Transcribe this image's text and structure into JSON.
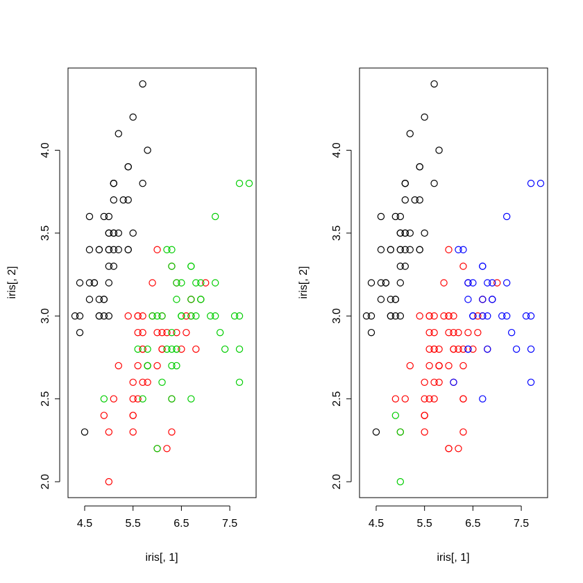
{
  "chart_data": [
    {
      "type": "scatter",
      "title": "",
      "xlabel": "iris[, 1]",
      "ylabel": "iris[, 2]",
      "xlim": [
        4.3,
        7.9
      ],
      "ylim": [
        2.0,
        4.4
      ],
      "xticks": [
        4.5,
        5.5,
        6.5,
        7.5
      ],
      "yticks": [
        2.0,
        2.5,
        3.0,
        3.5,
        4.0
      ],
      "xtick_labels": [
        "4.5",
        "5.5",
        "6.5",
        "7.5"
      ],
      "ytick_labels": [
        "2.0",
        "2.5",
        "3.0",
        "3.5",
        "4.0"
      ],
      "grid": false,
      "legend": "none",
      "series": [
        {
          "color": "#000000",
          "x": [
            5.1,
            4.9,
            4.7,
            4.6,
            5.0,
            5.4,
            4.6,
            5.0,
            4.4,
            4.9,
            5.4,
            4.8,
            4.8,
            4.3,
            5.8,
            5.7,
            5.4,
            5.1,
            5.7,
            5.1,
            5.4,
            5.1,
            4.6,
            5.1,
            4.8,
            5.0,
            5.0,
            5.2,
            5.2,
            4.7,
            4.8,
            5.4,
            5.2,
            5.5,
            4.9,
            5.0,
            5.5,
            4.9,
            4.4,
            5.1,
            5.0,
            4.5,
            4.4,
            5.0,
            5.1,
            4.8,
            5.1,
            4.6,
            5.3,
            5.0
          ],
          "y": [
            3.5,
            3.0,
            3.2,
            3.1,
            3.6,
            3.9,
            3.4,
            3.4,
            2.9,
            3.1,
            3.7,
            3.4,
            3.0,
            3.0,
            4.0,
            4.4,
            3.9,
            3.5,
            3.8,
            3.8,
            3.4,
            3.7,
            3.6,
            3.3,
            3.4,
            3.0,
            3.4,
            3.5,
            3.4,
            3.2,
            3.1,
            3.4,
            4.1,
            4.2,
            3.1,
            3.2,
            3.5,
            3.6,
            3.0,
            3.4,
            3.5,
            2.3,
            3.2,
            3.5,
            3.8,
            3.0,
            3.8,
            3.2,
            3.7,
            3.3
          ]
        },
        {
          "color": "#ff0000",
          "x": [
            7.0,
            6.4,
            6.9,
            5.5,
            6.5,
            5.7,
            6.3,
            4.9,
            6.6,
            5.2,
            5.0,
            5.9,
            6.0,
            6.1,
            5.6,
            6.7,
            5.6,
            5.8,
            6.2,
            5.6,
            5.9,
            6.1,
            6.3,
            6.1,
            6.4,
            6.6,
            6.8,
            6.7,
            6.0,
            5.7,
            5.5,
            5.5,
            5.8,
            6.0,
            5.4,
            6.0,
            6.7,
            6.3,
            5.6,
            5.5,
            5.5,
            6.1,
            5.8,
            5.0,
            5.6,
            5.7,
            5.7,
            6.2,
            5.1,
            5.7
          ],
          "y": [
            3.2,
            3.2,
            3.1,
            2.3,
            2.8,
            2.8,
            3.3,
            2.4,
            2.9,
            2.7,
            2.0,
            3.0,
            2.2,
            2.9,
            2.9,
            3.1,
            3.0,
            2.7,
            2.2,
            2.5,
            3.2,
            2.8,
            2.5,
            2.8,
            2.9,
            3.0,
            2.8,
            3.0,
            2.9,
            2.6,
            2.4,
            2.4,
            2.7,
            2.7,
            3.0,
            3.4,
            3.1,
            2.3,
            3.0,
            2.5,
            2.6,
            3.0,
            2.6,
            2.3,
            2.7,
            3.0,
            2.9,
            2.9,
            2.5,
            2.8
          ]
        },
        {
          "color": "#00cd00",
          "x": [
            6.3,
            5.8,
            7.1,
            6.3,
            6.5,
            7.6,
            4.9,
            7.3,
            6.7,
            7.2,
            6.5,
            6.4,
            6.8,
            5.7,
            5.8,
            6.4,
            6.5,
            7.7,
            7.7,
            6.0,
            6.9,
            5.6,
            7.7,
            6.3,
            6.7,
            7.2,
            6.2,
            6.1,
            6.4,
            7.2,
            7.4,
            7.9,
            6.4,
            6.3,
            6.1,
            7.7,
            6.3,
            6.4,
            6.0,
            6.9,
            6.7,
            6.9,
            5.8,
            6.8,
            6.7,
            6.7,
            6.3,
            6.5,
            6.2,
            5.9
          ],
          "y": [
            3.3,
            2.7,
            3.0,
            2.9,
            3.0,
            3.0,
            2.5,
            2.9,
            2.5,
            3.6,
            3.2,
            2.7,
            3.0,
            2.5,
            2.8,
            3.2,
            3.0,
            3.8,
            2.6,
            2.2,
            3.2,
            2.8,
            2.8,
            2.7,
            3.3,
            3.2,
            2.8,
            3.0,
            2.8,
            3.0,
            2.8,
            3.8,
            2.8,
            2.8,
            2.6,
            3.0,
            3.4,
            3.1,
            3.0,
            3.1,
            3.1,
            3.1,
            2.7,
            3.2,
            3.3,
            3.0,
            2.5,
            3.0,
            3.4,
            3.0
          ]
        }
      ]
    },
    {
      "type": "scatter",
      "title": "",
      "xlabel": "iris[, 1]",
      "ylabel": "iris[, 2]",
      "xlim": [
        4.3,
        7.9
      ],
      "ylim": [
        2.0,
        4.4
      ],
      "xticks": [
        4.5,
        5.5,
        6.5,
        7.5
      ],
      "yticks": [
        2.0,
        2.5,
        3.0,
        3.5,
        4.0
      ],
      "xtick_labels": [
        "4.5",
        "5.5",
        "6.5",
        "7.5"
      ],
      "ytick_labels": [
        "2.0",
        "2.5",
        "3.0",
        "3.5",
        "4.0"
      ],
      "grid": false,
      "legend": "none",
      "series": [
        {
          "color": "#000000",
          "x": [
            5.1,
            4.9,
            4.7,
            4.6,
            5.0,
            5.4,
            4.6,
            5.0,
            4.4,
            4.9,
            5.4,
            4.8,
            4.8,
            4.3,
            5.8,
            5.7,
            5.4,
            5.1,
            5.7,
            5.1,
            5.4,
            5.1,
            4.6,
            5.1,
            4.8,
            5.0,
            5.0,
            5.2,
            5.2,
            4.7,
            4.8,
            5.4,
            5.2,
            5.5,
            4.9,
            5.0,
            5.5,
            4.9,
            4.4,
            5.1,
            5.0,
            4.5,
            4.4,
            5.0,
            5.1,
            4.8,
            5.1,
            4.6,
            5.3,
            5.0
          ],
          "y": [
            3.5,
            3.0,
            3.2,
            3.1,
            3.6,
            3.9,
            3.4,
            3.4,
            2.9,
            3.1,
            3.7,
            3.4,
            3.0,
            3.0,
            4.0,
            4.4,
            3.9,
            3.5,
            3.8,
            3.8,
            3.4,
            3.7,
            3.6,
            3.3,
            3.4,
            3.0,
            3.4,
            3.5,
            3.4,
            3.2,
            3.1,
            3.4,
            4.1,
            4.2,
            3.1,
            3.2,
            3.5,
            3.6,
            3.0,
            3.4,
            3.5,
            2.3,
            3.2,
            3.5,
            3.8,
            3.0,
            3.8,
            3.2,
            3.7,
            3.3
          ]
        },
        {
          "color": "#ff0000",
          "x": [
            7.0,
            6.4,
            6.9,
            5.5,
            6.5,
            5.7,
            6.3,
            6.6,
            5.9,
            6.0,
            6.1,
            5.6,
            6.7,
            5.6,
            5.8,
            6.2,
            5.6,
            5.9,
            6.1,
            6.3,
            6.1,
            6.4,
            6.6,
            6.8,
            6.7,
            6.0,
            5.7,
            5.5,
            5.5,
            5.8,
            6.0,
            5.4,
            6.0,
            6.7,
            6.3,
            5.6,
            5.5,
            5.5,
            6.1,
            5.8,
            5.6,
            5.7,
            5.7,
            6.2,
            5.1,
            5.7,
            5.8,
            6.0,
            6.3,
            6.3,
            6.2,
            6.1,
            6.0,
            5.6,
            6.3,
            6.0,
            5.8,
            5.8,
            5.7,
            5.0,
            4.9,
            5.5,
            5.2
          ],
          "y": [
            3.2,
            3.2,
            3.1,
            2.3,
            2.8,
            2.8,
            3.3,
            2.9,
            3.0,
            2.2,
            2.9,
            2.9,
            3.1,
            3.0,
            2.7,
            2.2,
            2.5,
            3.2,
            2.8,
            2.5,
            2.8,
            2.9,
            3.0,
            2.8,
            3.0,
            2.9,
            2.6,
            2.4,
            2.4,
            2.7,
            2.7,
            3.0,
            3.4,
            3.1,
            2.3,
            3.0,
            2.5,
            2.6,
            3.0,
            2.6,
            2.7,
            3.0,
            2.9,
            2.9,
            2.5,
            2.8,
            2.7,
            2.2,
            2.5,
            2.8,
            2.8,
            2.6,
            3.0,
            2.8,
            2.7,
            3.0,
            2.7,
            2.8,
            2.5,
            2.3,
            2.5,
            2.4,
            2.7
          ]
        },
        {
          "color": "#00cd00",
          "x": [
            5.0,
            4.9,
            5.0
          ],
          "y": [
            2.0,
            2.4,
            2.3
          ]
        },
        {
          "color": "#0000ff",
          "x": [
            7.1,
            6.5,
            7.6,
            7.3,
            6.7,
            7.2,
            6.4,
            6.8,
            6.4,
            6.5,
            7.7,
            7.7,
            6.9,
            7.7,
            6.7,
            7.2,
            6.4,
            7.2,
            7.4,
            7.9,
            6.4,
            6.1,
            7.7,
            6.3,
            6.4,
            6.9,
            6.7,
            6.9,
            6.8,
            6.7,
            6.7,
            6.5,
            6.2,
            6.8,
            6.5
          ],
          "y": [
            3.0,
            3.0,
            3.0,
            2.9,
            2.5,
            3.6,
            3.2,
            3.0,
            3.2,
            3.0,
            3.8,
            2.6,
            3.2,
            2.8,
            3.3,
            3.2,
            2.8,
            3.0,
            2.8,
            3.8,
            2.8,
            2.6,
            3.0,
            3.4,
            3.1,
            3.1,
            3.1,
            3.1,
            3.2,
            3.3,
            3.0,
            3.0,
            3.4,
            2.8,
            3.2
          ]
        }
      ]
    }
  ]
}
